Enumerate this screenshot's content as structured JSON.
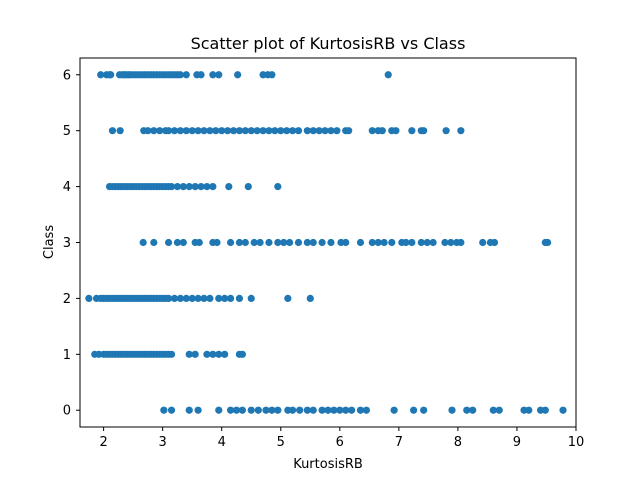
{
  "chart_data": {
    "type": "scatter",
    "title": "Scatter plot of KurtosisRB vs Class",
    "xlabel": "KurtosisRB",
    "ylabel": "Class",
    "xlim": [
      1.6,
      10.0
    ],
    "ylim": [
      -0.3,
      6.3
    ],
    "xticks": [
      2,
      3,
      4,
      5,
      6,
      7,
      8,
      9,
      10
    ],
    "yticks": [
      0,
      1,
      2,
      3,
      4,
      5,
      6
    ],
    "grid": false,
    "legend": "none",
    "marker_color": "#1f77b4",
    "series": [
      {
        "points": [
          [
            1.95,
            6
          ],
          [
            2.05,
            6
          ],
          [
            2.1,
            6
          ],
          [
            2.12,
            6
          ],
          [
            2.27,
            6
          ],
          [
            2.32,
            6
          ],
          [
            2.35,
            6
          ],
          [
            2.38,
            6
          ],
          [
            2.42,
            6
          ],
          [
            2.45,
            6
          ],
          [
            2.5,
            6
          ],
          [
            2.55,
            6
          ],
          [
            2.6,
            6
          ],
          [
            2.65,
            6
          ],
          [
            2.7,
            6
          ],
          [
            2.75,
            6
          ],
          [
            2.8,
            6
          ],
          [
            2.85,
            6
          ],
          [
            2.9,
            6
          ],
          [
            2.95,
            6
          ],
          [
            3.0,
            6
          ],
          [
            3.05,
            6
          ],
          [
            3.1,
            6
          ],
          [
            3.15,
            6
          ],
          [
            3.2,
            6
          ],
          [
            3.25,
            6
          ],
          [
            3.3,
            6
          ],
          [
            3.4,
            6
          ],
          [
            3.58,
            6
          ],
          [
            3.65,
            6
          ],
          [
            3.85,
            6
          ],
          [
            3.95,
            6
          ],
          [
            4.27,
            6
          ],
          [
            4.7,
            6
          ],
          [
            4.78,
            6
          ],
          [
            4.85,
            6
          ],
          [
            6.82,
            6
          ],
          [
            2.15,
            5
          ],
          [
            2.28,
            5
          ],
          [
            2.68,
            5
          ],
          [
            2.75,
            5
          ],
          [
            2.85,
            5
          ],
          [
            2.95,
            5
          ],
          [
            3.05,
            5
          ],
          [
            3.1,
            5
          ],
          [
            3.2,
            5
          ],
          [
            3.3,
            5
          ],
          [
            3.4,
            5
          ],
          [
            3.5,
            5
          ],
          [
            3.6,
            5
          ],
          [
            3.7,
            5
          ],
          [
            3.8,
            5
          ],
          [
            3.9,
            5
          ],
          [
            4.0,
            5
          ],
          [
            4.1,
            5
          ],
          [
            4.2,
            5
          ],
          [
            4.3,
            5
          ],
          [
            4.4,
            5
          ],
          [
            4.5,
            5
          ],
          [
            4.6,
            5
          ],
          [
            4.7,
            5
          ],
          [
            4.8,
            5
          ],
          [
            4.9,
            5
          ],
          [
            5.0,
            5
          ],
          [
            5.1,
            5
          ],
          [
            5.2,
            5
          ],
          [
            5.3,
            5
          ],
          [
            5.45,
            5
          ],
          [
            5.55,
            5
          ],
          [
            5.65,
            5
          ],
          [
            5.75,
            5
          ],
          [
            5.85,
            5
          ],
          [
            5.95,
            5
          ],
          [
            6.1,
            5
          ],
          [
            6.15,
            5
          ],
          [
            6.55,
            5
          ],
          [
            6.65,
            5
          ],
          [
            6.72,
            5
          ],
          [
            6.88,
            5
          ],
          [
            6.95,
            5
          ],
          [
            7.22,
            5
          ],
          [
            7.38,
            5
          ],
          [
            7.42,
            5
          ],
          [
            7.8,
            5
          ],
          [
            8.05,
            5
          ],
          [
            2.1,
            4
          ],
          [
            2.15,
            4
          ],
          [
            2.2,
            4
          ],
          [
            2.25,
            4
          ],
          [
            2.3,
            4
          ],
          [
            2.35,
            4
          ],
          [
            2.4,
            4
          ],
          [
            2.45,
            4
          ],
          [
            2.5,
            4
          ],
          [
            2.55,
            4
          ],
          [
            2.6,
            4
          ],
          [
            2.65,
            4
          ],
          [
            2.7,
            4
          ],
          [
            2.75,
            4
          ],
          [
            2.8,
            4
          ],
          [
            2.85,
            4
          ],
          [
            2.9,
            4
          ],
          [
            2.95,
            4
          ],
          [
            3.0,
            4
          ],
          [
            3.05,
            4
          ],
          [
            3.1,
            4
          ],
          [
            3.15,
            4
          ],
          [
            3.25,
            4
          ],
          [
            3.35,
            4
          ],
          [
            3.45,
            4
          ],
          [
            3.55,
            4
          ],
          [
            3.65,
            4
          ],
          [
            3.75,
            4
          ],
          [
            3.85,
            4
          ],
          [
            4.12,
            4
          ],
          [
            4.45,
            4
          ],
          [
            4.95,
            4
          ],
          [
            2.67,
            3
          ],
          [
            2.85,
            3
          ],
          [
            3.1,
            3
          ],
          [
            3.25,
            3
          ],
          [
            3.35,
            3
          ],
          [
            3.55,
            3
          ],
          [
            3.62,
            3
          ],
          [
            3.85,
            3
          ],
          [
            3.92,
            3
          ],
          [
            4.15,
            3
          ],
          [
            4.3,
            3
          ],
          [
            4.4,
            3
          ],
          [
            4.55,
            3
          ],
          [
            4.65,
            3
          ],
          [
            4.8,
            3
          ],
          [
            4.95,
            3
          ],
          [
            5.05,
            3
          ],
          [
            5.15,
            3
          ],
          [
            5.3,
            3
          ],
          [
            5.45,
            3
          ],
          [
            5.55,
            3
          ],
          [
            5.7,
            3
          ],
          [
            5.85,
            3
          ],
          [
            6.02,
            3
          ],
          [
            6.1,
            3
          ],
          [
            6.35,
            3
          ],
          [
            6.55,
            3
          ],
          [
            6.65,
            3
          ],
          [
            6.75,
            3
          ],
          [
            6.88,
            3
          ],
          [
            7.05,
            3
          ],
          [
            7.12,
            3
          ],
          [
            7.22,
            3
          ],
          [
            7.38,
            3
          ],
          [
            7.48,
            3
          ],
          [
            7.58,
            3
          ],
          [
            7.78,
            3
          ],
          [
            7.88,
            3
          ],
          [
            7.98,
            3
          ],
          [
            8.05,
            3
          ],
          [
            8.42,
            3
          ],
          [
            8.55,
            3
          ],
          [
            8.62,
            3
          ],
          [
            9.48,
            3
          ],
          [
            9.52,
            3
          ],
          [
            1.75,
            2
          ],
          [
            1.88,
            2
          ],
          [
            1.95,
            2
          ],
          [
            2.0,
            2
          ],
          [
            2.05,
            2
          ],
          [
            2.1,
            2
          ],
          [
            2.15,
            2
          ],
          [
            2.2,
            2
          ],
          [
            2.25,
            2
          ],
          [
            2.3,
            2
          ],
          [
            2.35,
            2
          ],
          [
            2.4,
            2
          ],
          [
            2.45,
            2
          ],
          [
            2.5,
            2
          ],
          [
            2.55,
            2
          ],
          [
            2.6,
            2
          ],
          [
            2.65,
            2
          ],
          [
            2.7,
            2
          ],
          [
            2.75,
            2
          ],
          [
            2.8,
            2
          ],
          [
            2.85,
            2
          ],
          [
            2.9,
            2
          ],
          [
            2.95,
            2
          ],
          [
            3.0,
            2
          ],
          [
            3.05,
            2
          ],
          [
            3.1,
            2
          ],
          [
            3.2,
            2
          ],
          [
            3.3,
            2
          ],
          [
            3.4,
            2
          ],
          [
            3.5,
            2
          ],
          [
            3.6,
            2
          ],
          [
            3.7,
            2
          ],
          [
            3.8,
            2
          ],
          [
            3.95,
            2
          ],
          [
            4.05,
            2
          ],
          [
            4.15,
            2
          ],
          [
            4.3,
            2
          ],
          [
            4.5,
            2
          ],
          [
            5.12,
            2
          ],
          [
            5.5,
            2
          ],
          [
            1.85,
            1
          ],
          [
            1.92,
            1
          ],
          [
            2.0,
            1
          ],
          [
            2.05,
            1
          ],
          [
            2.1,
            1
          ],
          [
            2.15,
            1
          ],
          [
            2.2,
            1
          ],
          [
            2.25,
            1
          ],
          [
            2.3,
            1
          ],
          [
            2.35,
            1
          ],
          [
            2.4,
            1
          ],
          [
            2.45,
            1
          ],
          [
            2.5,
            1
          ],
          [
            2.55,
            1
          ],
          [
            2.6,
            1
          ],
          [
            2.65,
            1
          ],
          [
            2.7,
            1
          ],
          [
            2.75,
            1
          ],
          [
            2.8,
            1
          ],
          [
            2.85,
            1
          ],
          [
            2.9,
            1
          ],
          [
            2.95,
            1
          ],
          [
            3.0,
            1
          ],
          [
            3.05,
            1
          ],
          [
            3.1,
            1
          ],
          [
            3.15,
            1
          ],
          [
            3.45,
            1
          ],
          [
            3.55,
            1
          ],
          [
            3.75,
            1
          ],
          [
            3.85,
            1
          ],
          [
            3.95,
            1
          ],
          [
            4.05,
            1
          ],
          [
            4.3,
            1
          ],
          [
            4.35,
            1
          ],
          [
            3.02,
            0
          ],
          [
            3.15,
            0
          ],
          [
            3.45,
            0
          ],
          [
            3.6,
            0
          ],
          [
            3.95,
            0
          ],
          [
            4.15,
            0
          ],
          [
            4.25,
            0
          ],
          [
            4.35,
            0
          ],
          [
            4.5,
            0
          ],
          [
            4.62,
            0
          ],
          [
            4.75,
            0
          ],
          [
            4.85,
            0
          ],
          [
            4.95,
            0
          ],
          [
            5.12,
            0
          ],
          [
            5.2,
            0
          ],
          [
            5.32,
            0
          ],
          [
            5.45,
            0
          ],
          [
            5.55,
            0
          ],
          [
            5.7,
            0
          ],
          [
            5.8,
            0
          ],
          [
            5.9,
            0
          ],
          [
            6.0,
            0
          ],
          [
            6.1,
            0
          ],
          [
            6.2,
            0
          ],
          [
            6.35,
            0
          ],
          [
            6.45,
            0
          ],
          [
            6.92,
            0
          ],
          [
            7.25,
            0
          ],
          [
            7.42,
            0
          ],
          [
            7.9,
            0
          ],
          [
            8.15,
            0
          ],
          [
            8.25,
            0
          ],
          [
            8.6,
            0
          ],
          [
            8.7,
            0
          ],
          [
            9.12,
            0
          ],
          [
            9.2,
            0
          ],
          [
            9.4,
            0
          ],
          [
            9.48,
            0
          ],
          [
            9.78,
            0
          ]
        ]
      }
    ]
  }
}
